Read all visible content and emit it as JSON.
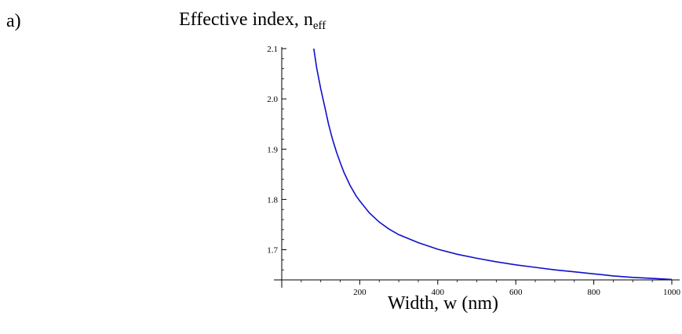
{
  "panel_label": "a)",
  "chart_data": {
    "type": "line",
    "title_main": "Effective index, n",
    "title_sub": "eff",
    "xlabel": "Width,  w (nm)",
    "ylabel": "",
    "xlim": [
      0,
      1000
    ],
    "ylim": [
      1.64,
      2.1
    ],
    "x_ticks": [
      {
        "value": 200,
        "label": "200"
      },
      {
        "value": 400,
        "label": "400"
      },
      {
        "value": 600,
        "label": "600"
      },
      {
        "value": 800,
        "label": "800"
      },
      {
        "value": 1000,
        "label": "1000"
      }
    ],
    "y_ticks": [
      {
        "value": 1.7,
        "label": "1.7"
      },
      {
        "value": 1.8,
        "label": "1.8"
      },
      {
        "value": 1.9,
        "label": "1.9"
      },
      {
        "value": 2.0,
        "label": "2.0"
      },
      {
        "value": 2.1,
        "label": "2.1"
      }
    ],
    "grid": false,
    "legend": "none",
    "series": [
      {
        "color": "#1010cc",
        "points": [
          [
            82,
            2.1
          ],
          [
            90,
            2.06
          ],
          [
            100,
            2.02
          ],
          [
            110,
            1.985
          ],
          [
            120,
            1.95
          ],
          [
            130,
            1.92
          ],
          [
            140,
            1.895
          ],
          [
            150,
            1.873
          ],
          [
            160,
            1.853
          ],
          [
            175,
            1.828
          ],
          [
            190,
            1.808
          ],
          [
            200,
            1.797
          ],
          [
            225,
            1.773
          ],
          [
            250,
            1.755
          ],
          [
            275,
            1.741
          ],
          [
            300,
            1.73
          ],
          [
            350,
            1.714
          ],
          [
            400,
            1.701
          ],
          [
            450,
            1.691
          ],
          [
            500,
            1.683
          ],
          [
            550,
            1.676
          ],
          [
            600,
            1.67
          ],
          [
            650,
            1.665
          ],
          [
            700,
            1.66
          ],
          [
            750,
            1.656
          ],
          [
            800,
            1.652
          ],
          [
            850,
            1.648
          ],
          [
            900,
            1.645
          ],
          [
            950,
            1.643
          ],
          [
            1000,
            1.641
          ]
        ]
      }
    ]
  }
}
